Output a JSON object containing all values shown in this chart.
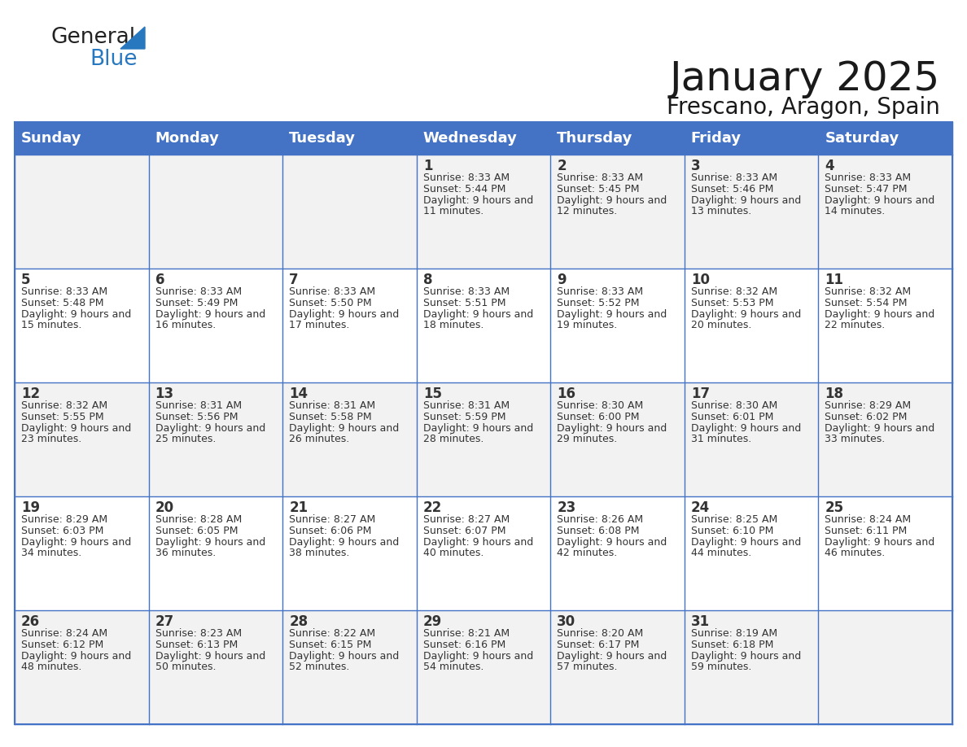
{
  "title": "January 2025",
  "subtitle": "Frescano, Aragon, Spain",
  "days_of_week": [
    "Sunday",
    "Monday",
    "Tuesday",
    "Wednesday",
    "Thursday",
    "Friday",
    "Saturday"
  ],
  "header_bg": "#4472C4",
  "header_text": "#FFFFFF",
  "row_bg_odd": "#F2F2F2",
  "row_bg_even": "#FFFFFF",
  "border_color": "#4472C4",
  "text_color": "#333333",
  "title_color": "#1a1a1a",
  "subtitle_color": "#1a1a1a",
  "calendar_data": [
    [
      {
        "day": "",
        "sunrise": "",
        "sunset": "",
        "daylight": ""
      },
      {
        "day": "",
        "sunrise": "",
        "sunset": "",
        "daylight": ""
      },
      {
        "day": "",
        "sunrise": "",
        "sunset": "",
        "daylight": ""
      },
      {
        "day": "1",
        "sunrise": "8:33 AM",
        "sunset": "5:44 PM",
        "daylight": "9 hours and 11 minutes."
      },
      {
        "day": "2",
        "sunrise": "8:33 AM",
        "sunset": "5:45 PM",
        "daylight": "9 hours and 12 minutes."
      },
      {
        "day": "3",
        "sunrise": "8:33 AM",
        "sunset": "5:46 PM",
        "daylight": "9 hours and 13 minutes."
      },
      {
        "day": "4",
        "sunrise": "8:33 AM",
        "sunset": "5:47 PM",
        "daylight": "9 hours and 14 minutes."
      }
    ],
    [
      {
        "day": "5",
        "sunrise": "8:33 AM",
        "sunset": "5:48 PM",
        "daylight": "9 hours and 15 minutes."
      },
      {
        "day": "6",
        "sunrise": "8:33 AM",
        "sunset": "5:49 PM",
        "daylight": "9 hours and 16 minutes."
      },
      {
        "day": "7",
        "sunrise": "8:33 AM",
        "sunset": "5:50 PM",
        "daylight": "9 hours and 17 minutes."
      },
      {
        "day": "8",
        "sunrise": "8:33 AM",
        "sunset": "5:51 PM",
        "daylight": "9 hours and 18 minutes."
      },
      {
        "day": "9",
        "sunrise": "8:33 AM",
        "sunset": "5:52 PM",
        "daylight": "9 hours and 19 minutes."
      },
      {
        "day": "10",
        "sunrise": "8:32 AM",
        "sunset": "5:53 PM",
        "daylight": "9 hours and 20 minutes."
      },
      {
        "day": "11",
        "sunrise": "8:32 AM",
        "sunset": "5:54 PM",
        "daylight": "9 hours and 22 minutes."
      }
    ],
    [
      {
        "day": "12",
        "sunrise": "8:32 AM",
        "sunset": "5:55 PM",
        "daylight": "9 hours and 23 minutes."
      },
      {
        "day": "13",
        "sunrise": "8:31 AM",
        "sunset": "5:56 PM",
        "daylight": "9 hours and 25 minutes."
      },
      {
        "day": "14",
        "sunrise": "8:31 AM",
        "sunset": "5:58 PM",
        "daylight": "9 hours and 26 minutes."
      },
      {
        "day": "15",
        "sunrise": "8:31 AM",
        "sunset": "5:59 PM",
        "daylight": "9 hours and 28 minutes."
      },
      {
        "day": "16",
        "sunrise": "8:30 AM",
        "sunset": "6:00 PM",
        "daylight": "9 hours and 29 minutes."
      },
      {
        "day": "17",
        "sunrise": "8:30 AM",
        "sunset": "6:01 PM",
        "daylight": "9 hours and 31 minutes."
      },
      {
        "day": "18",
        "sunrise": "8:29 AM",
        "sunset": "6:02 PM",
        "daylight": "9 hours and 33 minutes."
      }
    ],
    [
      {
        "day": "19",
        "sunrise": "8:29 AM",
        "sunset": "6:03 PM",
        "daylight": "9 hours and 34 minutes."
      },
      {
        "day": "20",
        "sunrise": "8:28 AM",
        "sunset": "6:05 PM",
        "daylight": "9 hours and 36 minutes."
      },
      {
        "day": "21",
        "sunrise": "8:27 AM",
        "sunset": "6:06 PM",
        "daylight": "9 hours and 38 minutes."
      },
      {
        "day": "22",
        "sunrise": "8:27 AM",
        "sunset": "6:07 PM",
        "daylight": "9 hours and 40 minutes."
      },
      {
        "day": "23",
        "sunrise": "8:26 AM",
        "sunset": "6:08 PM",
        "daylight": "9 hours and 42 minutes."
      },
      {
        "day": "24",
        "sunrise": "8:25 AM",
        "sunset": "6:10 PM",
        "daylight": "9 hours and 44 minutes."
      },
      {
        "day": "25",
        "sunrise": "8:24 AM",
        "sunset": "6:11 PM",
        "daylight": "9 hours and 46 minutes."
      }
    ],
    [
      {
        "day": "26",
        "sunrise": "8:24 AM",
        "sunset": "6:12 PM",
        "daylight": "9 hours and 48 minutes."
      },
      {
        "day": "27",
        "sunrise": "8:23 AM",
        "sunset": "6:13 PM",
        "daylight": "9 hours and 50 minutes."
      },
      {
        "day": "28",
        "sunrise": "8:22 AM",
        "sunset": "6:15 PM",
        "daylight": "9 hours and 52 minutes."
      },
      {
        "day": "29",
        "sunrise": "8:21 AM",
        "sunset": "6:16 PM",
        "daylight": "9 hours and 54 minutes."
      },
      {
        "day": "30",
        "sunrise": "8:20 AM",
        "sunset": "6:17 PM",
        "daylight": "9 hours and 57 minutes."
      },
      {
        "day": "31",
        "sunrise": "8:19 AM",
        "sunset": "6:18 PM",
        "daylight": "9 hours and 59 minutes."
      },
      {
        "day": "",
        "sunrise": "",
        "sunset": "",
        "daylight": ""
      }
    ]
  ]
}
